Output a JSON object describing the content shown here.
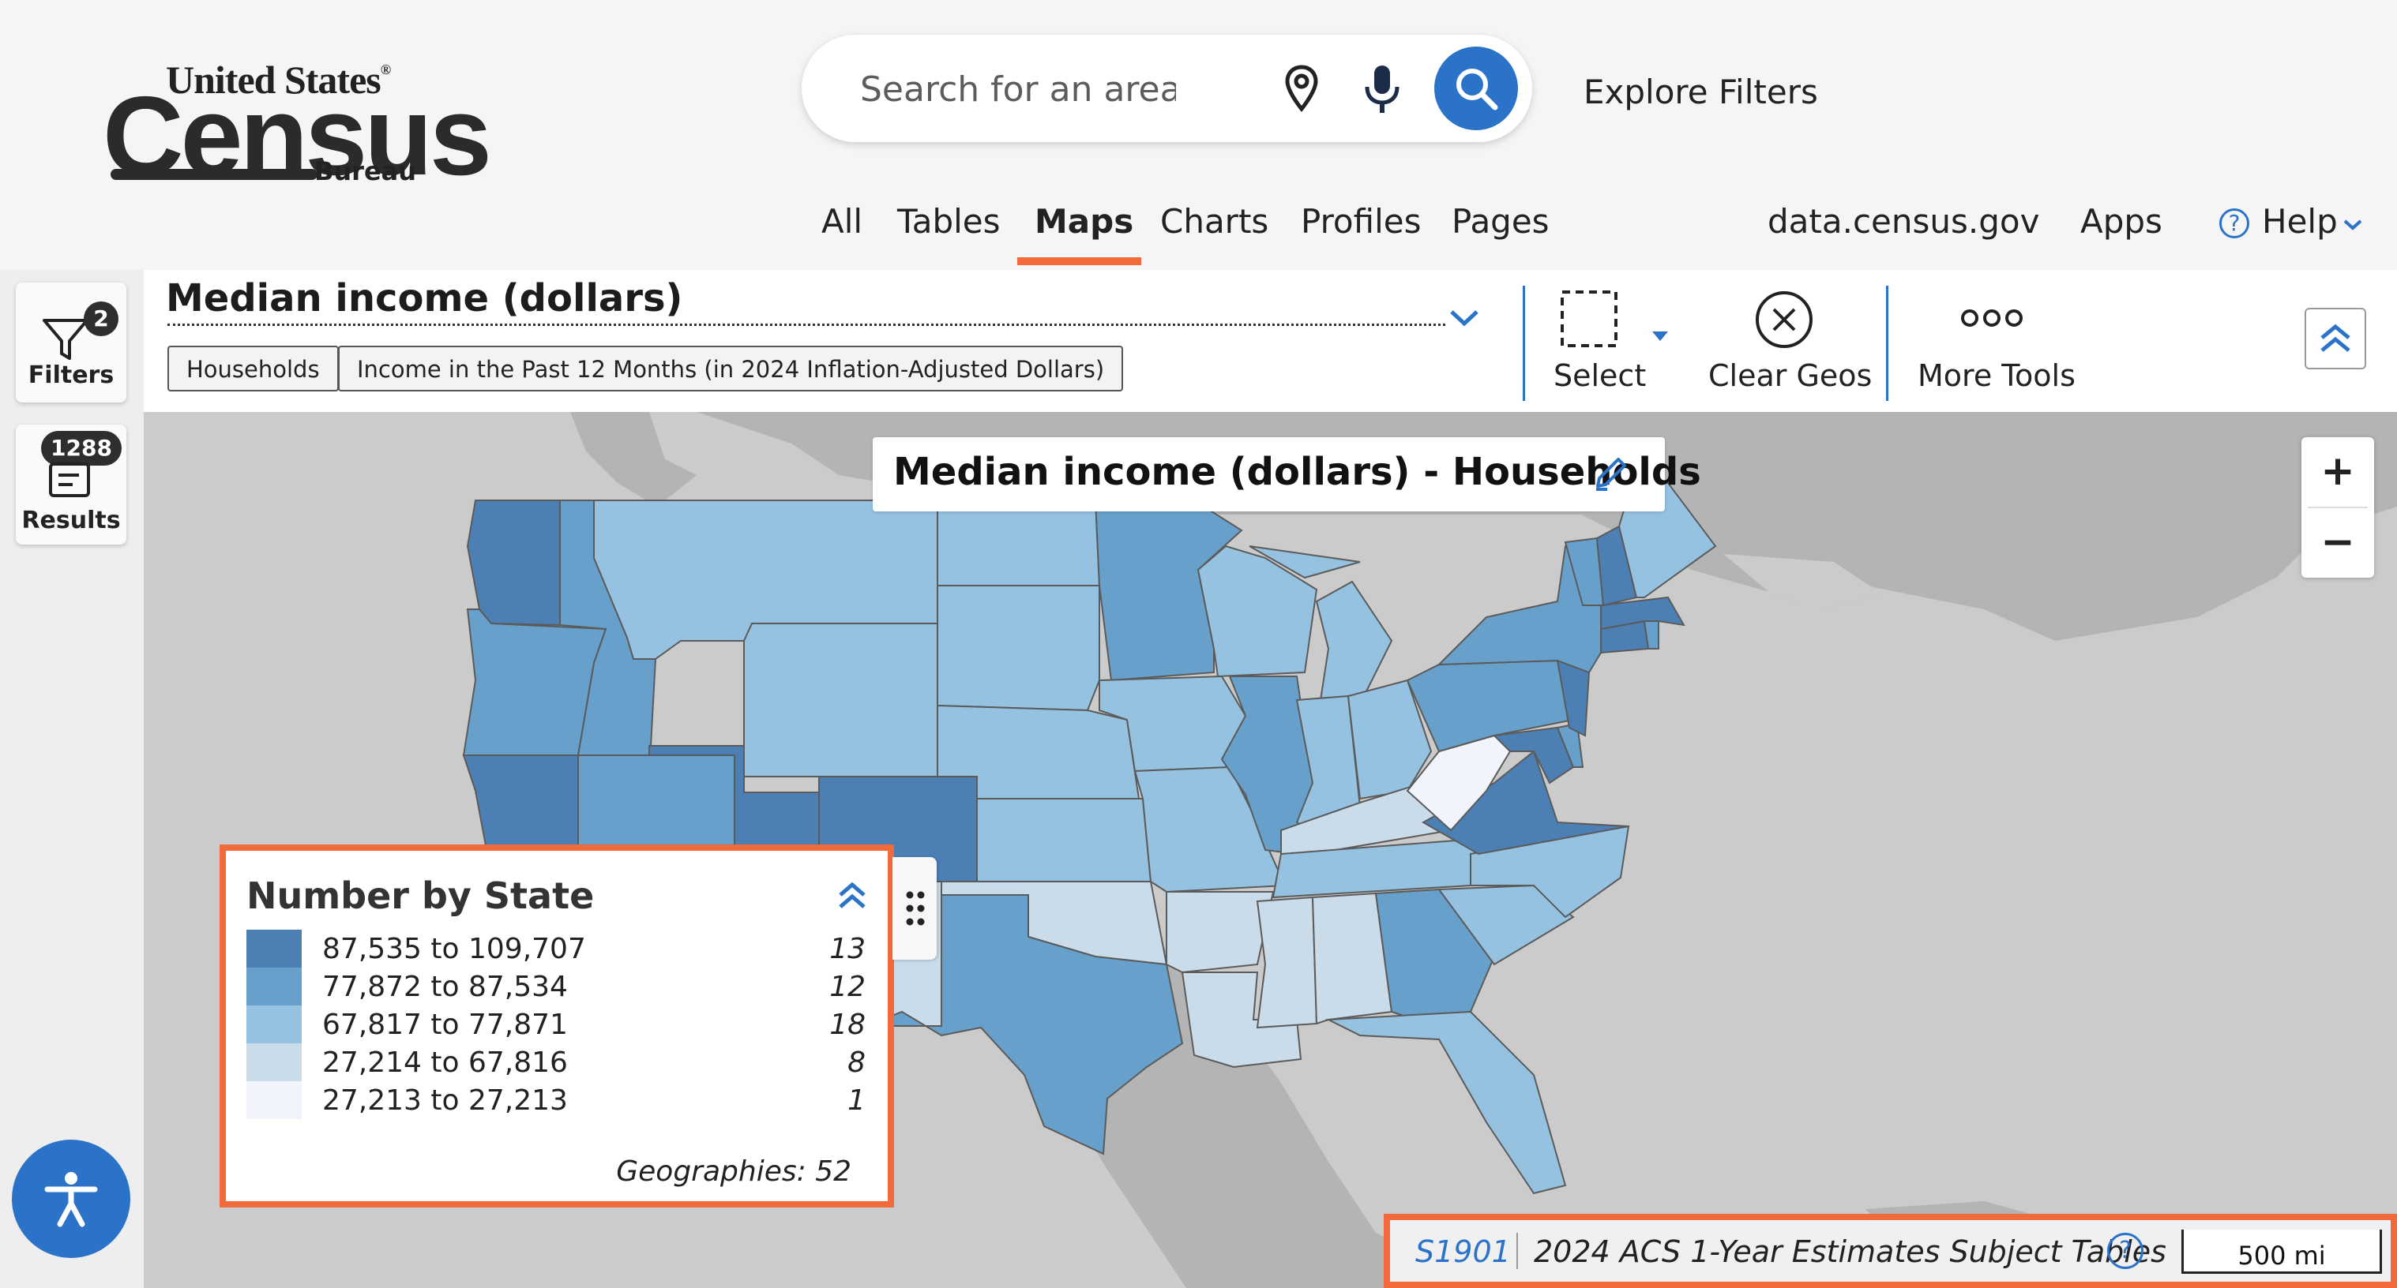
{
  "logo": {
    "line1": "United States",
    "reg": "®",
    "line2": "Census",
    "line3": "Bureau"
  },
  "search": {
    "placeholder": "Search for an area",
    "explore_filters": "Explore Filters"
  },
  "nav": {
    "items": [
      "All",
      "Tables",
      "Maps",
      "Charts",
      "Profiles",
      "Pages"
    ],
    "active": "Maps",
    "site": "data.census.gov",
    "apps": "Apps",
    "help": "Help"
  },
  "rail": {
    "filters_label": "Filters",
    "filters_count": "2",
    "results_label": "Results",
    "results_count": "1288"
  },
  "toolbar": {
    "variable": "Median income (dollars)",
    "chips": [
      "Households",
      "Income in the Past 12 Months (in 2024 Inflation-Adjusted Dollars)"
    ],
    "select_label": "Select",
    "clear_label": "Clear Geos",
    "more_label": "More Tools"
  },
  "map": {
    "title": "Median income (dollars) - Households"
  },
  "legend": {
    "title": "Number by State",
    "rows": [
      {
        "range": "87,535 to 109,707",
        "count": "13",
        "color": "#4c7fb4"
      },
      {
        "range": "77,872 to 87,534",
        "count": "12",
        "color": "#67a0cb"
      },
      {
        "range": "67,817 to 77,871",
        "count": "18",
        "color": "#95c2e1"
      },
      {
        "range": "27,214 to 67,816",
        "count": "8",
        "color": "#cadcea"
      },
      {
        "range": "27,213 to 27,213",
        "count": "1",
        "color": "#f1f5fb"
      }
    ],
    "geographies": "Geographies: 52"
  },
  "attribution": {
    "table_code": "S1901",
    "dataset": "2024 ACS 1-Year Estimates Subject Tables",
    "scale": "500 mi"
  },
  "colors": {
    "accent": "#2b73c8",
    "highlight": "#f26a3b",
    "land": "#b3b3b3",
    "water": "#cbcbcb"
  },
  "states": [
    {
      "name": "Washington",
      "class": 0
    },
    {
      "name": "Oregon",
      "class": 1
    },
    {
      "name": "California",
      "class": 0
    },
    {
      "name": "Idaho",
      "class": 1
    },
    {
      "name": "Nevada",
      "class": 1
    },
    {
      "name": "Utah",
      "class": 0
    },
    {
      "name": "Arizona",
      "class": 1
    },
    {
      "name": "Montana",
      "class": 2
    },
    {
      "name": "Wyoming",
      "class": 2
    },
    {
      "name": "Colorado",
      "class": 0
    },
    {
      "name": "New Mexico",
      "class": 3
    },
    {
      "name": "North Dakota",
      "class": 2
    },
    {
      "name": "South Dakota",
      "class": 2
    },
    {
      "name": "Nebraska",
      "class": 2
    },
    {
      "name": "Kansas",
      "class": 2
    },
    {
      "name": "Oklahoma",
      "class": 3
    },
    {
      "name": "Texas",
      "class": 1
    },
    {
      "name": "Minnesota",
      "class": 1
    },
    {
      "name": "Iowa",
      "class": 2
    },
    {
      "name": "Missouri",
      "class": 2
    },
    {
      "name": "Arkansas",
      "class": 3
    },
    {
      "name": "Louisiana",
      "class": 3
    },
    {
      "name": "Wisconsin",
      "class": 2
    },
    {
      "name": "Illinois",
      "class": 1
    },
    {
      "name": "Michigan",
      "class": 2
    },
    {
      "name": "Indiana",
      "class": 2
    },
    {
      "name": "Ohio",
      "class": 2
    },
    {
      "name": "Kentucky",
      "class": 3
    },
    {
      "name": "Tennessee",
      "class": 2
    },
    {
      "name": "Mississippi",
      "class": 3
    },
    {
      "name": "Alabama",
      "class": 3
    },
    {
      "name": "Georgia",
      "class": 1
    },
    {
      "name": "Florida",
      "class": 2
    },
    {
      "name": "South Carolina",
      "class": 2
    },
    {
      "name": "North Carolina",
      "class": 2
    },
    {
      "name": "Virginia",
      "class": 0
    },
    {
      "name": "West Virginia",
      "class": 4
    },
    {
      "name": "Maryland",
      "class": 0
    },
    {
      "name": "Delaware",
      "class": 1
    },
    {
      "name": "Pennsylvania",
      "class": 1
    },
    {
      "name": "New Jersey",
      "class": 0
    },
    {
      "name": "New York",
      "class": 1
    },
    {
      "name": "Connecticut",
      "class": 0
    },
    {
      "name": "Rhode Island",
      "class": 1
    },
    {
      "name": "Massachusetts",
      "class": 0
    },
    {
      "name": "Vermont",
      "class": 1
    },
    {
      "name": "New Hampshire",
      "class": 0
    },
    {
      "name": "Maine",
      "class": 2
    }
  ]
}
